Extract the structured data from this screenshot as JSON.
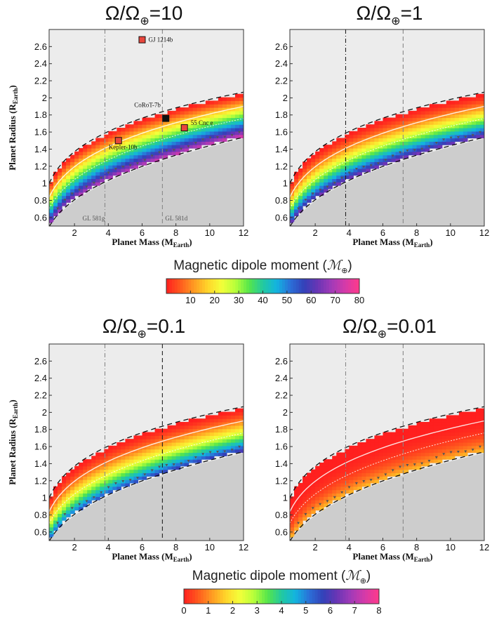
{
  "figure": {
    "colorbar_title": "Magnetic dipole moment (",
    "colorbar_unit": "ℳ",
    "colorbar_unit_sub": "⊕"
  },
  "colorbars": [
    {
      "ticks": [
        10,
        20,
        30,
        40,
        50,
        60,
        70,
        80
      ],
      "range": [
        0,
        80
      ]
    },
    {
      "ticks": [
        0,
        1,
        2,
        3,
        4,
        5,
        6,
        7,
        8
      ],
      "range": [
        0,
        8
      ]
    }
  ],
  "colormap": [
    "#ff1f1f",
    "#ff5a1e",
    "#ff9a22",
    "#ffd52a",
    "#f4ff3a",
    "#b8ff3a",
    "#56e64b",
    "#22c9a0",
    "#12b4e0",
    "#2b6fd8",
    "#3340b8",
    "#6b35b5",
    "#a33ab8",
    "#d63aa8",
    "#ff3a8a"
  ],
  "chart_data": [
    {
      "type": "heatmap",
      "title_lhs": "Ω/Ω",
      "title_sub": "⊕",
      "title_rhs": "=10",
      "xlabel": "Planet Mass (M",
      "xlabel_sub": "Earth",
      "ylabel": "Planet Radius (R",
      "ylabel_sub": "Earth",
      "xlim": [
        0.5,
        12
      ],
      "ylim": [
        0.5,
        2.8
      ],
      "xticks": [
        "2",
        "4",
        "6",
        "8",
        "10",
        "12"
      ],
      "yticks": [
        "0.6",
        "0.8",
        "1",
        "1.2",
        "1.4",
        "1.6",
        "1.8",
        "2",
        "2.2",
        "2.4",
        "2.6"
      ],
      "vlines": [
        3.8,
        7.2
      ],
      "vline_labels": [
        "GL 581g",
        "GL 581d"
      ],
      "moment_scale": 80,
      "planets": [
        {
          "name": "GJ 1214b",
          "x": 6.0,
          "y": 2.68,
          "color": "#e8463c"
        },
        {
          "name": "CoRoT-7b",
          "x": 7.4,
          "y": 1.76,
          "color": "#111111"
        },
        {
          "name": "55 Cnc e",
          "x": 8.5,
          "y": 1.65,
          "color": "#e8463c"
        },
        {
          "name": "Kepler-10b",
          "x": 4.6,
          "y": 1.5,
          "color": "#e8463c"
        }
      ]
    },
    {
      "type": "heatmap",
      "title_lhs": "Ω/Ω",
      "title_sub": "⊕",
      "title_rhs": "=1",
      "xlabel": "Planet Mass (M",
      "xlabel_sub": "Earth",
      "ylabel": "",
      "ylabel_sub": "",
      "xlim": [
        0.5,
        12
      ],
      "ylim": [
        0.5,
        2.8
      ],
      "xticks": [
        "2",
        "4",
        "6",
        "8",
        "10",
        "12"
      ],
      "yticks": [
        "0.6",
        "0.8",
        "1",
        "1.2",
        "1.4",
        "1.6",
        "1.8",
        "2",
        "2.2",
        "2.4",
        "2.6"
      ],
      "vlines": [
        3.8,
        7.2
      ],
      "vline_labels": [],
      "moment_scale": 80,
      "planets": []
    },
    {
      "type": "heatmap",
      "title_lhs": "Ω/Ω",
      "title_sub": "⊕",
      "title_rhs": "=0.1",
      "xlabel": "Planet Mass (M",
      "xlabel_sub": "Earth",
      "ylabel": "Planet Radius (R",
      "ylabel_sub": "Earth",
      "xlim": [
        0.5,
        12
      ],
      "ylim": [
        0.5,
        2.8
      ],
      "xticks": [
        "2",
        "4",
        "6",
        "8",
        "10",
        "12"
      ],
      "yticks": [
        "0.6",
        "0.8",
        "1",
        "1.2",
        "1.4",
        "1.6",
        "1.8",
        "2",
        "2.2",
        "2.4",
        "2.6"
      ],
      "vlines": [
        3.8,
        7.2
      ],
      "vline_labels": [],
      "moment_scale": 8,
      "planets": []
    },
    {
      "type": "heatmap",
      "title_lhs": "Ω/Ω",
      "title_sub": "⊕",
      "title_rhs": "=0.01",
      "xlabel": "Planet Mass (M",
      "xlabel_sub": "Earth",
      "ylabel": "",
      "ylabel_sub": "",
      "xlim": [
        0.5,
        12
      ],
      "ylim": [
        0.5,
        2.8
      ],
      "xticks": [
        "2",
        "4",
        "6",
        "8",
        "10",
        "12"
      ],
      "yticks": [
        "0.6",
        "0.8",
        "1",
        "1.2",
        "1.4",
        "1.6",
        "1.8",
        "2",
        "2.2",
        "2.4",
        "2.6"
      ],
      "vlines": [
        3.8,
        7.2
      ],
      "vline_labels": [],
      "moment_scale": 8,
      "planets": []
    }
  ]
}
